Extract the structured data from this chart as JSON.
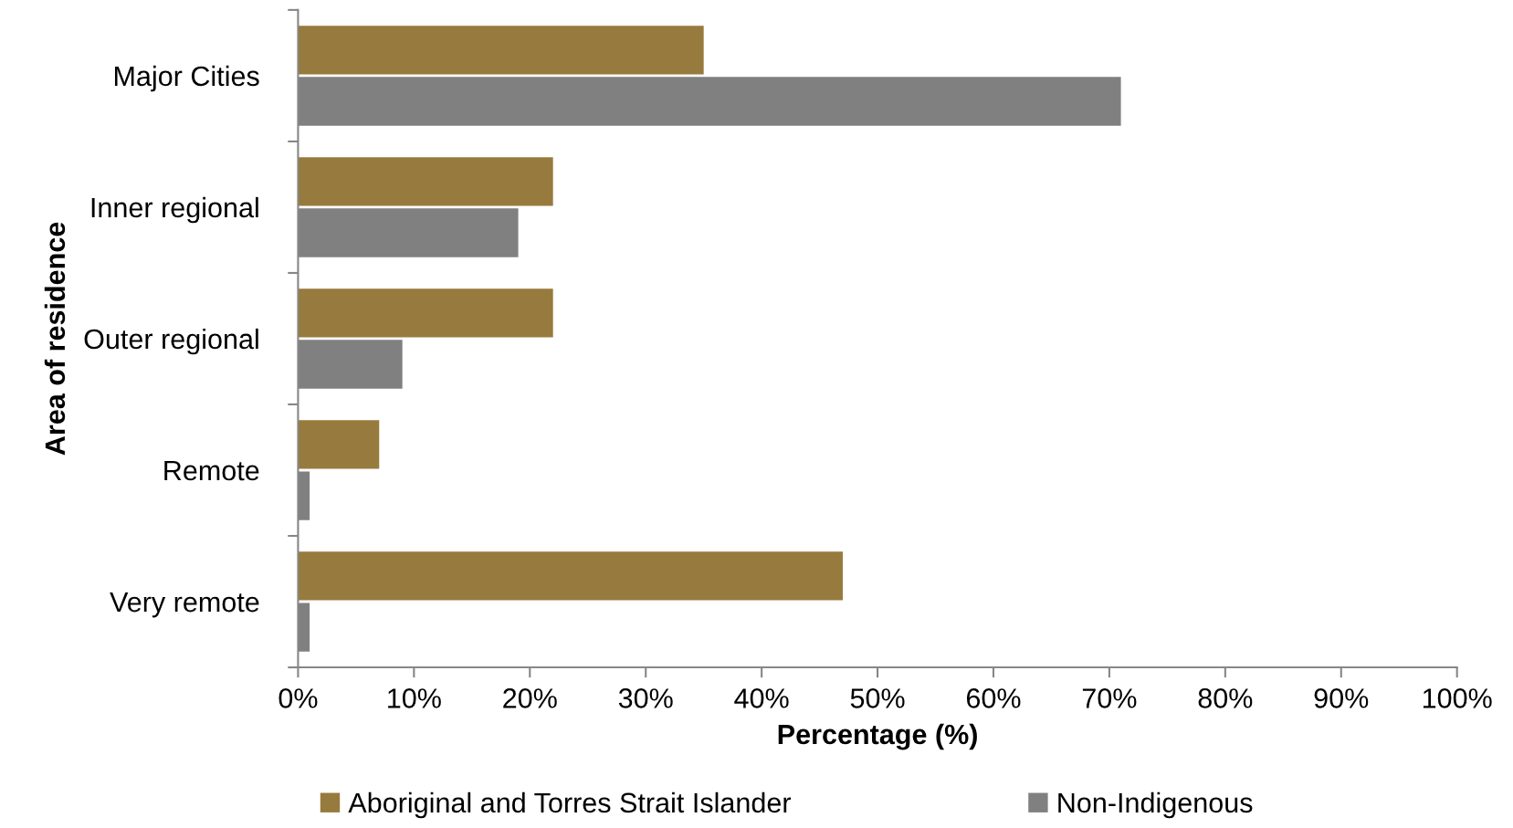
{
  "chart_data": {
    "type": "bar",
    "orientation": "horizontal",
    "categories": [
      "Major Cities",
      "Inner regional",
      "Outer regional",
      "Remote",
      "Very remote"
    ],
    "xlabel": "Percentage (%)",
    "ylabel": "Area of residence",
    "series": [
      {
        "name": "Aboriginal and Torres Strait Islander",
        "color": "#977a3d",
        "values": [
          35,
          22,
          22,
          7,
          47
        ]
      },
      {
        "name": "Non-Indigenous",
        "color": "#808080",
        "values": [
          71,
          19,
          9,
          1,
          1
        ]
      }
    ],
    "xlim": [
      0,
      100
    ],
    "xticks": [
      {
        "value": 0,
        "label": "0%"
      },
      {
        "value": 10,
        "label": "10%"
      },
      {
        "value": 20,
        "label": "20%"
      },
      {
        "value": 30,
        "label": "30%"
      },
      {
        "value": 40,
        "label": "40%"
      },
      {
        "value": 50,
        "label": "50%"
      },
      {
        "value": 60,
        "label": "60%"
      },
      {
        "value": 70,
        "label": "70%"
      },
      {
        "value": 80,
        "label": "80%"
      },
      {
        "value": 90,
        "label": "90%"
      },
      {
        "value": 100,
        "label": "100%"
      }
    ],
    "legend": "bottom"
  }
}
